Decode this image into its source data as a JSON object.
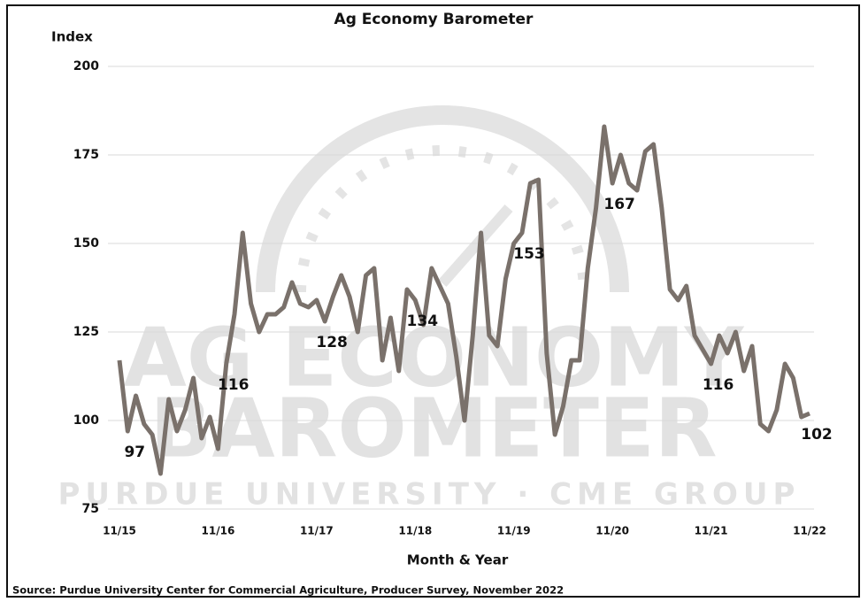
{
  "chart_data": {
    "type": "line",
    "title": "Ag Economy Barometer",
    "y_label": "Index",
    "x_label": "Month & Year",
    "source": "Source: Purdue University Center for Commercial Agriculture, Producer Survey, November 2022",
    "watermark": [
      "AG ECONOMY",
      "BAROMETER",
      "PURDUE UNIVERSITY · CME GROUP"
    ],
    "categories": [
      "11/15",
      null,
      null,
      null,
      null,
      null,
      null,
      null,
      null,
      null,
      null,
      null,
      "11/16",
      null,
      null,
      null,
      null,
      null,
      null,
      null,
      null,
      null,
      null,
      null,
      "11/17",
      null,
      null,
      null,
      null,
      null,
      null,
      null,
      null,
      null,
      null,
      null,
      "11/18",
      null,
      null,
      null,
      null,
      null,
      null,
      null,
      null,
      null,
      null,
      null,
      "11/19",
      null,
      null,
      null,
      null,
      null,
      null,
      null,
      null,
      null,
      null,
      null,
      "11/20",
      null,
      null,
      null,
      null,
      null,
      null,
      null,
      null,
      null,
      null,
      null,
      "11/21",
      null,
      null,
      null,
      null,
      null,
      null,
      null,
      null,
      null,
      null,
      null,
      "11/22"
    ],
    "series": [
      {
        "name": "Ag Economy Barometer",
        "color": "#7a716b",
        "values": [
          117,
          97,
          107,
          99,
          96,
          85,
          106,
          97,
          103,
          112,
          95,
          101,
          92,
          116,
          130,
          153,
          133,
          125,
          130,
          130,
          132,
          139,
          133,
          132,
          134,
          128,
          135,
          141,
          135,
          125,
          141,
          143,
          117,
          129,
          114,
          137,
          134,
          127,
          143,
          138,
          133,
          118,
          100,
          124,
          153,
          124,
          121,
          140,
          150,
          153,
          167,
          168,
          119,
          96,
          104,
          117,
          117,
          143,
          160,
          183,
          167,
          175,
          167,
          165,
          176,
          178,
          160,
          137,
          134,
          138,
          124,
          120,
          116,
          124,
          119,
          125,
          114,
          121,
          99,
          97,
          103,
          116,
          112,
          101,
          102
        ],
        "value_labels": [
          null,
          "97",
          null,
          null,
          null,
          null,
          null,
          null,
          null,
          null,
          null,
          null,
          null,
          "116",
          null,
          null,
          null,
          null,
          null,
          null,
          null,
          null,
          null,
          null,
          null,
          "128",
          null,
          null,
          null,
          null,
          null,
          null,
          null,
          null,
          null,
          null,
          "134",
          null,
          null,
          null,
          null,
          null,
          null,
          null,
          null,
          null,
          null,
          null,
          null,
          "153",
          null,
          null,
          null,
          null,
          null,
          null,
          null,
          null,
          null,
          null,
          "167",
          null,
          null,
          null,
          null,
          null,
          null,
          null,
          null,
          null,
          null,
          null,
          "116",
          null,
          null,
          null,
          null,
          null,
          null,
          null,
          null,
          null,
          null,
          null,
          "102"
        ]
      }
    ],
    "ylim": [
      75,
      200
    ],
    "yticks": [
      75,
      100,
      125,
      150,
      175,
      200
    ],
    "grid": true
  }
}
